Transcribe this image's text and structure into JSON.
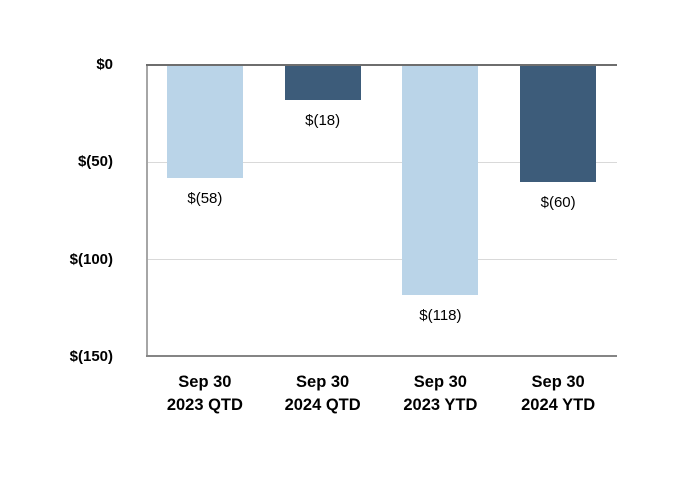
{
  "chart_data": {
    "type": "bar",
    "categories": [
      "Sep 30\n2023 QTD",
      "Sep 30\n2024 QTD",
      "Sep 30\n2023 YTD",
      "Sep 30\n2024 YTD"
    ],
    "values": [
      -58,
      -18,
      -118,
      -60
    ],
    "data_labels": [
      "$(58)",
      "$(18)",
      "$(118)",
      "$(60)"
    ],
    "bar_colors": [
      "#BAD4E8",
      "#3D5C7A",
      "#BAD4E8",
      "#3D5C7A"
    ],
    "title": "",
    "xlabel": "",
    "ylabel": "",
    "ylim": [
      -150,
      0
    ],
    "y_ticks": [
      0,
      -50,
      -100,
      -150
    ],
    "y_tick_labels": [
      "$0",
      "$(50)",
      "$(100)",
      "$(150)"
    ],
    "grid": true,
    "legend": false,
    "series_note": "light blue = 2023 periods, dark blue = 2024 periods"
  },
  "colors": {
    "bar_light_blue": "#BAD4E8",
    "bar_dark_blue": "#3D5C7A",
    "gridline": "#D9D9D9",
    "zero_axis_line": "#6E6E6E",
    "bottom_axis_line": "#858585",
    "left_axis_line": "#A6A6A6",
    "text": "#000000",
    "background": "#FFFFFF"
  }
}
